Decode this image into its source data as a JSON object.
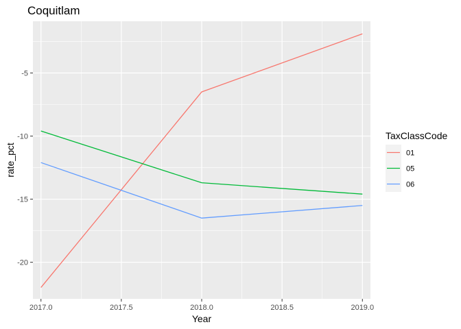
{
  "chart_data": {
    "type": "line",
    "title": "Coquitlam",
    "xlabel": "Year",
    "ylabel": "rate_pct",
    "x": [
      2017,
      2018,
      2019
    ],
    "xlim": [
      2016.95,
      2019.05
    ],
    "ylim": [
      -22.9,
      -0.9
    ],
    "x_ticks": [
      2017.0,
      2017.5,
      2018.0,
      2018.5,
      2019.0
    ],
    "x_tick_labels": [
      "2017.0",
      "2017.5",
      "2018.0",
      "2018.5",
      "2019.0"
    ],
    "y_ticks": [
      -20,
      -15,
      -10,
      -5
    ],
    "y_tick_labels": [
      "-20",
      "-15",
      "-10",
      "-5"
    ],
    "grid": true,
    "legend": {
      "title": "TaxClassCode",
      "placement": "right"
    },
    "series": [
      {
        "name": "01",
        "color": "#F8766D",
        "values": [
          -22.0,
          -6.5,
          -1.9
        ]
      },
      {
        "name": "05",
        "color": "#00BA38",
        "values": [
          -9.6,
          -13.7,
          -14.6
        ]
      },
      {
        "name": "06",
        "color": "#619CFF",
        "values": [
          -12.1,
          -16.5,
          -15.5
        ]
      }
    ]
  },
  "colors": {
    "panel_background": "#EBEBEB",
    "grid_major": "#FFFFFF",
    "legend_key_background": "#F2F2F2"
  }
}
